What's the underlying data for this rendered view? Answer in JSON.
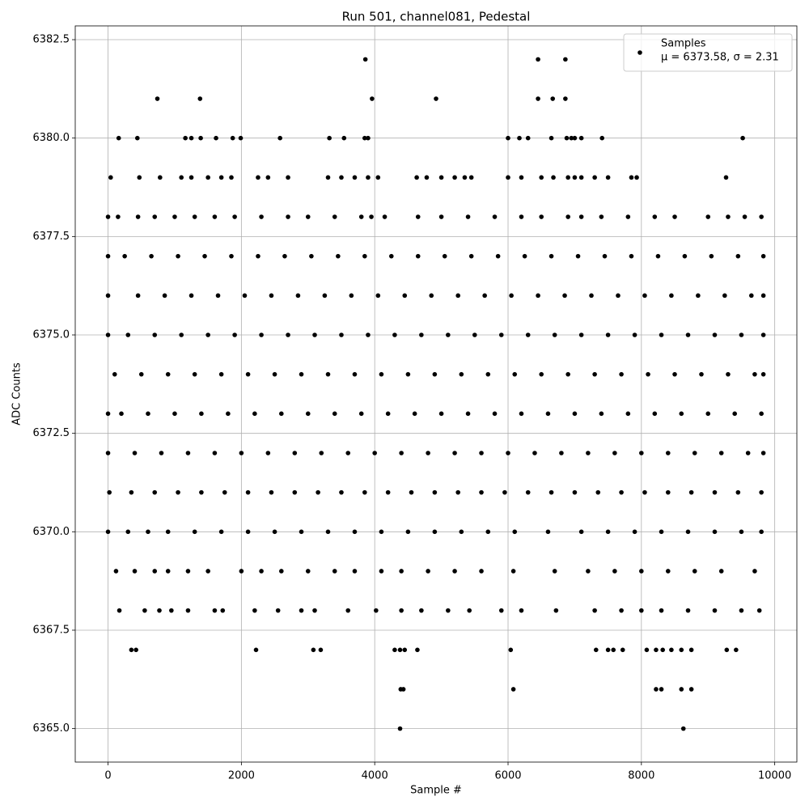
{
  "chart_data": {
    "type": "scatter",
    "title": "Run 501, channel081, Pedestal",
    "xlabel": "Sample #",
    "ylabel": "ADC Counts",
    "xlim": [
      -492,
      10332
    ],
    "ylim": [
      6364.15,
      6382.85
    ],
    "xticks": [
      0,
      2000,
      4000,
      6000,
      8000,
      10000
    ],
    "yticks": [
      {
        "value": 6365,
        "label": "6365.0"
      },
      6367.5,
      {
        "value": 6370,
        "label": "6370.0"
      },
      6372.5,
      {
        "value": 6375,
        "label": "6375.0"
      },
      6377.5,
      {
        "value": 6380,
        "label": "6380.0"
      },
      6382.5
    ],
    "grid": true,
    "legend": "upper right",
    "legend_subtitle": "μ = 6373.58, σ = 2.31",
    "series": [
      {
        "name": "Samples",
        "color": "#000000",
        "x": [
          4380,
          8630,
          4390,
          4430,
          6080,
          8220,
          8300,
          8600,
          8750,
          350,
          420,
          2220,
          3080,
          3190,
          4300,
          4380,
          4450,
          4640,
          6040,
          7320,
          7500,
          7580,
          7720,
          8080,
          8220,
          8320,
          8450,
          8600,
          8750,
          9280,
          9420,
          170,
          550,
          770,
          950,
          1200,
          1600,
          1720,
          2200,
          2550,
          2900,
          3100,
          3600,
          4020,
          4400,
          4700,
          5100,
          5420,
          5900,
          6200,
          6720,
          7300,
          7700,
          8000,
          8300,
          8700,
          9100,
          9500,
          9770,
          120,
          400,
          700,
          900,
          1200,
          1500,
          2000,
          2300,
          2600,
          3000,
          3400,
          3700,
          4100,
          4400,
          4800,
          5200,
          5600,
          6080,
          6700,
          7200,
          7600,
          8000,
          8400,
          8800,
          9200,
          9700,
          0,
          300,
          600,
          900,
          1300,
          1700,
          2100,
          2500,
          2900,
          3300,
          3700,
          4100,
          4500,
          4900,
          5300,
          5700,
          6100,
          6600,
          7100,
          7500,
          7900,
          8300,
          8700,
          9100,
          9500,
          9800,
          20,
          350,
          700,
          1050,
          1400,
          1750,
          2100,
          2450,
          2800,
          3150,
          3500,
          3850,
          4200,
          4550,
          4900,
          5250,
          5600,
          5950,
          6300,
          6650,
          7000,
          7350,
          7700,
          8050,
          8400,
          8750,
          9100,
          9450,
          9800,
          0,
          400,
          800,
          1200,
          1600,
          2000,
          2400,
          2800,
          3200,
          3600,
          4000,
          4400,
          4800,
          5200,
          5600,
          6000,
          6400,
          6800,
          7200,
          7600,
          8000,
          8400,
          8800,
          9200,
          9600,
          9830,
          0,
          200,
          600,
          1000,
          1400,
          1800,
          2200,
          2600,
          3000,
          3400,
          3800,
          4200,
          4600,
          5000,
          5400,
          5800,
          6200,
          6600,
          7000,
          7400,
          7800,
          8200,
          8600,
          9000,
          9400,
          9800,
          100,
          500,
          900,
          1300,
          1700,
          2100,
          2500,
          2900,
          3300,
          3700,
          4100,
          4500,
          4900,
          5300,
          5700,
          6100,
          6500,
          6900,
          7300,
          7700,
          8100,
          8500,
          8900,
          9300,
          9700,
          9830,
          0,
          300,
          700,
          1100,
          1500,
          1900,
          2300,
          2700,
          3100,
          3500,
          3900,
          4300,
          4700,
          5100,
          5500,
          5900,
          6300,
          6700,
          7100,
          7500,
          7900,
          8300,
          8700,
          9100,
          9500,
          9830,
          0,
          450,
          850,
          1250,
          1650,
          2050,
          2450,
          2850,
          3250,
          3650,
          4050,
          4450,
          4850,
          5250,
          5650,
          6050,
          6450,
          6850,
          7250,
          7650,
          8050,
          8450,
          8850,
          9250,
          9650,
          9830,
          0,
          250,
          650,
          1050,
          1450,
          1850,
          2250,
          2650,
          3050,
          3450,
          3850,
          4250,
          4650,
          5050,
          5450,
          5850,
          6250,
          6650,
          7050,
          7450,
          7850,
          8250,
          8650,
          9050,
          9450,
          9830,
          0,
          150,
          450,
          700,
          1000,
          1300,
          1600,
          1900,
          2300,
          2700,
          3000,
          3400,
          3800,
          3950,
          4150,
          4650,
          5000,
          5400,
          5800,
          6200,
          6500,
          6900,
          7100,
          7400,
          7800,
          8200,
          8500,
          9000,
          9300,
          9550,
          9800,
          40,
          470,
          780,
          1100,
          1250,
          1500,
          1700,
          1850,
          2250,
          2400,
          2700,
          3300,
          3500,
          3700,
          3900,
          4050,
          4630,
          4780,
          5000,
          5200,
          5350,
          5450,
          6000,
          6200,
          6500,
          6680,
          6900,
          7000,
          7100,
          7300,
          7500,
          7850,
          7930,
          9270,
          160,
          440,
          1160,
          1250,
          1390,
          1620,
          1870,
          1990,
          2580,
          3320,
          3540,
          3850,
          3900,
          6000,
          6170,
          6300,
          6650,
          6880,
          6950,
          7000,
          7100,
          7410,
          9520,
          740,
          1380,
          3960,
          4920,
          6450,
          6670,
          6860,
          3860,
          6450,
          6860
        ],
        "values": [
          6365,
          6365,
          6366,
          6366,
          6366,
          6366,
          6366,
          6366,
          6366,
          6367,
          6367,
          6367,
          6367,
          6367,
          6367,
          6367,
          6367,
          6367,
          6367,
          6367,
          6367,
          6367,
          6367,
          6367,
          6367,
          6367,
          6367,
          6367,
          6367,
          6367,
          6367,
          6368,
          6368,
          6368,
          6368,
          6368,
          6368,
          6368,
          6368,
          6368,
          6368,
          6368,
          6368,
          6368,
          6368,
          6368,
          6368,
          6368,
          6368,
          6368,
          6368,
          6368,
          6368,
          6368,
          6368,
          6368,
          6368,
          6368,
          6368,
          6369,
          6369,
          6369,
          6369,
          6369,
          6369,
          6369,
          6369,
          6369,
          6369,
          6369,
          6369,
          6369,
          6369,
          6369,
          6369,
          6369,
          6369,
          6369,
          6369,
          6369,
          6369,
          6369,
          6369,
          6369,
          6369,
          6370,
          6370,
          6370,
          6370,
          6370,
          6370,
          6370,
          6370,
          6370,
          6370,
          6370,
          6370,
          6370,
          6370,
          6370,
          6370,
          6370,
          6370,
          6370,
          6370,
          6370,
          6370,
          6370,
          6370,
          6370,
          6370,
          6371,
          6371,
          6371,
          6371,
          6371,
          6371,
          6371,
          6371,
          6371,
          6371,
          6371,
          6371,
          6371,
          6371,
          6371,
          6371,
          6371,
          6371,
          6371,
          6371,
          6371,
          6371,
          6371,
          6371,
          6371,
          6371,
          6371,
          6371,
          6371,
          6372,
          6372,
          6372,
          6372,
          6372,
          6372,
          6372,
          6372,
          6372,
          6372,
          6372,
          6372,
          6372,
          6372,
          6372,
          6372,
          6372,
          6372,
          6372,
          6372,
          6372,
          6372,
          6372,
          6372,
          6372,
          6372,
          6373,
          6373,
          6373,
          6373,
          6373,
          6373,
          6373,
          6373,
          6373,
          6373,
          6373,
          6373,
          6373,
          6373,
          6373,
          6373,
          6373,
          6373,
          6373,
          6373,
          6373,
          6373,
          6373,
          6373,
          6373,
          6373,
          6374,
          6374,
          6374,
          6374,
          6374,
          6374,
          6374,
          6374,
          6374,
          6374,
          6374,
          6374,
          6374,
          6374,
          6374,
          6374,
          6374,
          6374,
          6374,
          6374,
          6374,
          6374,
          6374,
          6374,
          6374,
          6374,
          6375,
          6375,
          6375,
          6375,
          6375,
          6375,
          6375,
          6375,
          6375,
          6375,
          6375,
          6375,
          6375,
          6375,
          6375,
          6375,
          6375,
          6375,
          6375,
          6375,
          6375,
          6375,
          6375,
          6375,
          6375,
          6375,
          6376,
          6376,
          6376,
          6376,
          6376,
          6376,
          6376,
          6376,
          6376,
          6376,
          6376,
          6376,
          6376,
          6376,
          6376,
          6376,
          6376,
          6376,
          6376,
          6376,
          6376,
          6376,
          6376,
          6376,
          6376,
          6376,
          6377,
          6377,
          6377,
          6377,
          6377,
          6377,
          6377,
          6377,
          6377,
          6377,
          6377,
          6377,
          6377,
          6377,
          6377,
          6377,
          6377,
          6377,
          6377,
          6377,
          6377,
          6377,
          6377,
          6377,
          6377,
          6377,
          6378,
          6378,
          6378,
          6378,
          6378,
          6378,
          6378,
          6378,
          6378,
          6378,
          6378,
          6378,
          6378,
          6378,
          6378,
          6378,
          6378,
          6378,
          6378,
          6378,
          6378,
          6378,
          6378,
          6378,
          6378,
          6378,
          6378,
          6378,
          6378,
          6378,
          6378,
          6379,
          6379,
          6379,
          6379,
          6379,
          6379,
          6379,
          6379,
          6379,
          6379,
          6379,
          6379,
          6379,
          6379,
          6379,
          6379,
          6379,
          6379,
          6379,
          6379,
          6379,
          6379,
          6379,
          6379,
          6379,
          6379,
          6379,
          6379,
          6379,
          6379,
          6379,
          6379,
          6379,
          6379,
          6380,
          6380,
          6380,
          6380,
          6380,
          6380,
          6380,
          6380,
          6380,
          6380,
          6380,
          6380,
          6380,
          6380,
          6380,
          6380,
          6380,
          6380,
          6380,
          6380,
          6380,
          6380,
          6380,
          6381,
          6381,
          6381,
          6381,
          6381,
          6381,
          6381,
          6382,
          6382,
          6382
        ]
      }
    ]
  }
}
